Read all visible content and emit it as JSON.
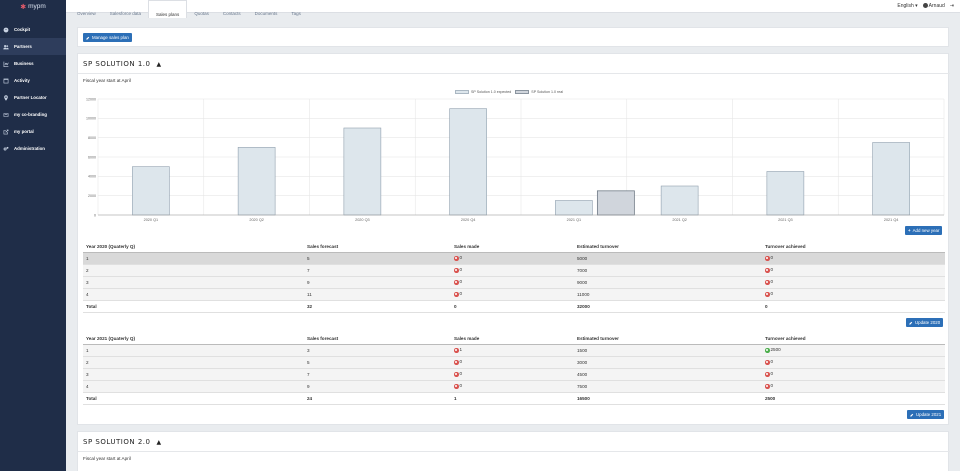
{
  "app": {
    "logo_text": "mypm"
  },
  "sidebar": {
    "items": [
      {
        "label": "Cockpit",
        "icon": "cockpit-icon"
      },
      {
        "label": "Partners",
        "icon": "partners-icon"
      },
      {
        "label": "Business",
        "icon": "business-icon"
      },
      {
        "label": "Activity",
        "icon": "activity-icon"
      },
      {
        "label": "Partner Locator",
        "icon": "location-pin-icon"
      },
      {
        "label": "my co-branding",
        "icon": "co-branding-icon"
      },
      {
        "label": "my portal",
        "icon": "portal-icon"
      },
      {
        "label": "Administration",
        "icon": "gears-icon"
      }
    ]
  },
  "topbar": {
    "tabs": [
      "Overview",
      "Salesforce data",
      "Sales plans",
      "Quotas",
      "Contacts",
      "Documents",
      "Tags"
    ],
    "active_tab": "Sales plans",
    "language": "English",
    "user": "Arnaud"
  },
  "manage_button": "Manage sales plan",
  "solution1": {
    "title": "SP SOLUTION 1.0",
    "fiscal": "Fiscal year start at April",
    "add_year_button": "Add new year",
    "update_2020_button": "Update 2020",
    "update_2021_button": "Update 2021"
  },
  "solution2": {
    "title": "SP SOLUTION 2.0",
    "fiscal": "Fiscal year start at April"
  },
  "chart_data": {
    "type": "bar",
    "categories": [
      "2020 Q1",
      "2020 Q2",
      "2020 Q3",
      "2020 Q4",
      "2021 Q1",
      "2021 Q2",
      "2021 Q3",
      "2021 Q4"
    ],
    "series": [
      {
        "name": "SP Solution 1.0 expected",
        "values": [
          5000,
          7000,
          9000,
          11000,
          1500,
          3000,
          4500,
          7500
        ],
        "color": "#dde6ec"
      },
      {
        "name": "SP Solution 1.0 real",
        "values": [
          0,
          0,
          0,
          0,
          2500,
          0,
          0,
          0
        ],
        "color": "#d0d5dc"
      }
    ],
    "ylim": [
      0,
      12000
    ],
    "yticks": [
      "0",
      "2000",
      "4000",
      "6000",
      "8000",
      "10000",
      "12000"
    ],
    "grid": true,
    "legend": "top-center"
  },
  "table2020": {
    "headers": [
      "Year 2020 (Quaterly Q)",
      "Sales forecast",
      "Sales made",
      "Estimated turnover",
      "Turnover achieved"
    ],
    "rows": [
      {
        "q": "1",
        "forecast": "5",
        "made": "0",
        "turnover": "5000",
        "achieved": "0"
      },
      {
        "q": "2",
        "forecast": "7",
        "made": "0",
        "turnover": "7000",
        "achieved": "0"
      },
      {
        "q": "3",
        "forecast": "9",
        "made": "0",
        "turnover": "9000",
        "achieved": "0"
      },
      {
        "q": "4",
        "forecast": "11",
        "made": "0",
        "turnover": "11000",
        "achieved": "0"
      }
    ],
    "total": {
      "label": "Total",
      "forecast": "32",
      "made": "0",
      "turnover": "32000",
      "achieved": "0"
    }
  },
  "table2021": {
    "headers": [
      "Year 2021 (Quaterly Q)",
      "Sales forecast",
      "Sales made",
      "Estimated turnover",
      "Turnover achieved"
    ],
    "rows": [
      {
        "q": "1",
        "forecast": "3",
        "made": "1",
        "turnover": "1500",
        "achieved": "2500"
      },
      {
        "q": "2",
        "forecast": "5",
        "made": "0",
        "turnover": "3000",
        "achieved": "0"
      },
      {
        "q": "3",
        "forecast": "7",
        "made": "0",
        "turnover": "4500",
        "achieved": "0"
      },
      {
        "q": "4",
        "forecast": "9",
        "made": "0",
        "turnover": "7500",
        "achieved": "0"
      }
    ],
    "total": {
      "label": "Total",
      "forecast": "24",
      "made": "1",
      "turnover": "16500",
      "achieved": "2500"
    }
  }
}
